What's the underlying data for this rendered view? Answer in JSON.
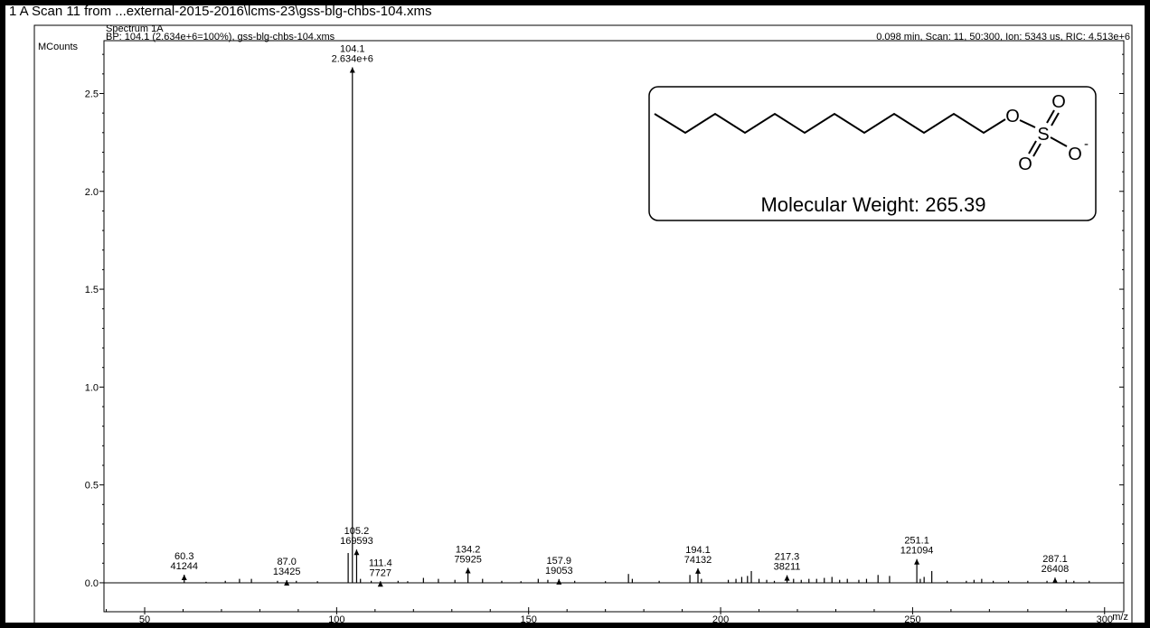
{
  "chart_data": {
    "type": "stick",
    "title": "1 A  Scan 11 from ...external-2015-2016\\lcms-23\\gss-blg-chbs-104.xms",
    "subtitle": "Spectrum 1A",
    "header_left": "BP: 104.1 (2.634e+6=100%), gss-blg-chbs-104.xms",
    "header_right": "0.098 min, Scan: 11, 50:300, Ion: 5343 us, RIC: 4.513e+6",
    "y_label": "MCounts",
    "x_label": "m/z",
    "color": "#000000",
    "xlim": [
      39.4,
      305
    ],
    "ylim": [
      -0.148,
      2.77
    ],
    "xticks": [
      50,
      100,
      150,
      200,
      250,
      300
    ],
    "yticks": [
      {
        "value": 0,
        "label": "0.0"
      },
      0.5,
      {
        "value": 1,
        "label": "1.0"
      },
      1.5,
      {
        "value": 2,
        "label": "2.0"
      },
      2.5
    ],
    "xminor_ticks": [
      40,
      60,
      70,
      80,
      90,
      110,
      120,
      130,
      140,
      160,
      170,
      180,
      190,
      210,
      220,
      230,
      240,
      260,
      270,
      280,
      290
    ],
    "yminor_ticks": [
      0.1,
      0.2,
      0.3,
      0.4,
      0.6,
      0.7,
      0.8,
      0.9,
      1.1,
      1.2,
      1.3,
      1.4,
      1.6,
      1.7,
      1.8,
      1.9,
      2.1,
      2.2,
      2.3,
      2.4,
      2.6,
      2.7
    ],
    "peaks": {
      "x": [
        60.3,
        87.0,
        104.1,
        105.2,
        111.4,
        134.2,
        157.9,
        194.1,
        217.3,
        251.1,
        287.1
      ],
      "x_labels": [
        "60.3",
        "87.0",
        "104.1",
        "105.2",
        "111.4",
        "134.2",
        "157.9",
        "194.1",
        "217.3",
        "251.1",
        "287.1"
      ],
      "values": [
        0.041244,
        0.013425,
        2.634,
        0.169593,
        0.007727,
        0.075925,
        0.019053,
        0.074132,
        0.038211,
        0.121094,
        0.026408
      ],
      "value_labels": [
        "41244",
        "13425",
        "2.634e+6",
        "169593",
        "7727",
        "75925",
        "19053",
        "74132",
        "38211",
        "121094",
        "26408"
      ]
    },
    "minor_peaks": {
      "x": [
        66.0,
        71.0,
        74.7,
        77.8,
        84.6,
        89.5,
        95.0,
        103.0,
        106.2,
        109.0,
        116.0,
        118.5,
        122.6,
        126.5,
        130.8,
        138.0,
        143.0,
        148.0,
        152.5,
        155.0,
        162.0,
        170.0,
        176.0,
        177.0,
        184.0,
        192.0,
        195.0,
        202.0,
        204.0,
        205.5,
        207.0,
        208.0,
        210.0,
        212.0,
        214.0,
        219.0,
        221.0,
        223.0,
        225.0,
        227.0,
        229.0,
        231.0,
        233.0,
        236.0,
        238.0,
        241.0,
        244.0,
        252.0,
        253.0,
        255.0,
        259.0,
        264.0,
        266.0,
        268.0,
        271.0,
        275.0,
        280.0,
        285.0,
        290.0,
        292.0,
        296.0
      ],
      "values": [
        0.005,
        0.01,
        0.02,
        0.02,
        0.01,
        0.01,
        0.008,
        0.152,
        0.02,
        0.01,
        0.01,
        0.008,
        0.025,
        0.02,
        0.015,
        0.02,
        0.01,
        0.008,
        0.02,
        0.015,
        0.01,
        0.008,
        0.045,
        0.02,
        0.01,
        0.04,
        0.02,
        0.015,
        0.02,
        0.03,
        0.035,
        0.06,
        0.02,
        0.015,
        0.01,
        0.02,
        0.015,
        0.02,
        0.02,
        0.025,
        0.03,
        0.015,
        0.02,
        0.015,
        0.02,
        0.04,
        0.035,
        0.02,
        0.03,
        0.06,
        0.01,
        0.01,
        0.015,
        0.02,
        0.01,
        0.01,
        0.01,
        0.01,
        0.015,
        0.01,
        0.01
      ]
    }
  },
  "inset": {
    "atoms": [
      "O",
      "S",
      "O",
      "O",
      "O"
    ],
    "charge": "-",
    "caption": "Molecular Weight: 265.39"
  }
}
